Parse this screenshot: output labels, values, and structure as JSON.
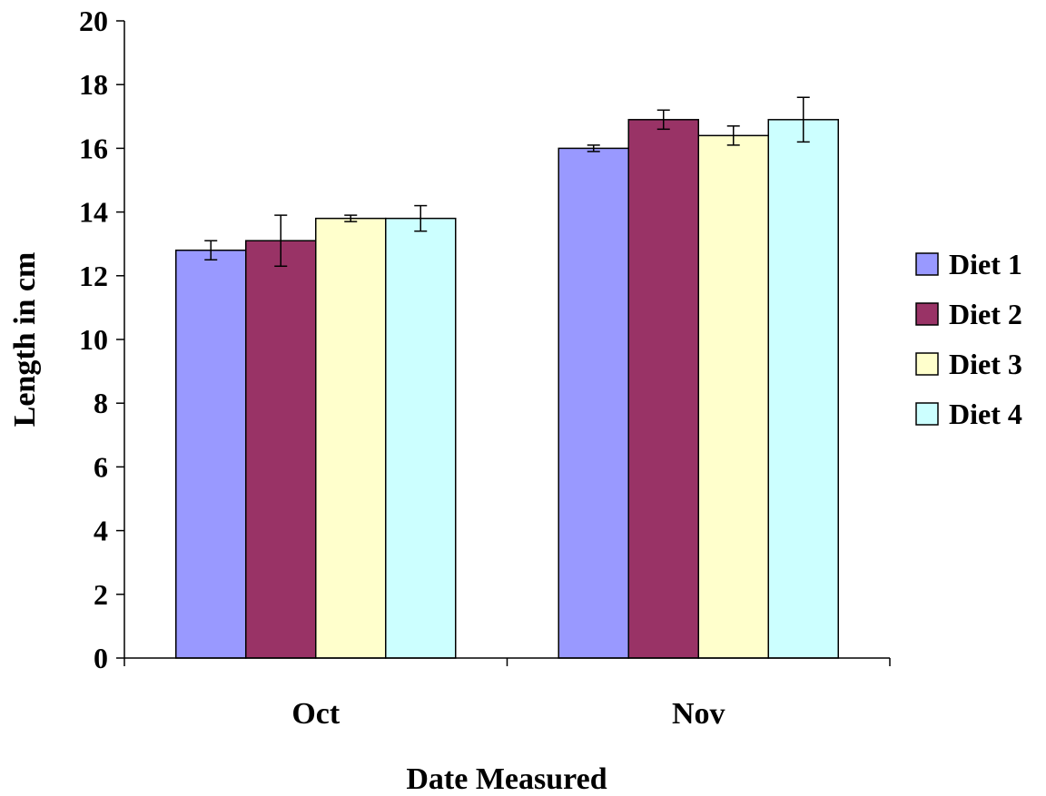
{
  "chart_data": {
    "type": "bar",
    "categories": [
      "Oct",
      "Nov"
    ],
    "series": [
      {
        "name": "Diet 1",
        "color": "#9999ff",
        "values": [
          12.8,
          16.0
        ],
        "errors": [
          0.3,
          0.1
        ]
      },
      {
        "name": "Diet 2",
        "color": "#993366",
        "values": [
          13.1,
          16.9
        ],
        "errors": [
          0.8,
          0.3
        ]
      },
      {
        "name": "Diet 3",
        "color": "#ffffcc",
        "values": [
          13.8,
          16.4
        ],
        "errors": [
          0.1,
          0.3
        ]
      },
      {
        "name": "Diet 4",
        "color": "#ccffff",
        "values": [
          13.8,
          16.9
        ],
        "errors": [
          0.4,
          0.7
        ]
      }
    ],
    "xlabel": "Date Measured",
    "ylabel": "Length in cm",
    "ylim": [
      0,
      20
    ],
    "yticks": [
      "0",
      "2",
      "4",
      "6",
      "8",
      "10",
      "12",
      "14",
      "16",
      "18",
      "20"
    ],
    "grid": false,
    "legend_position": "right"
  }
}
